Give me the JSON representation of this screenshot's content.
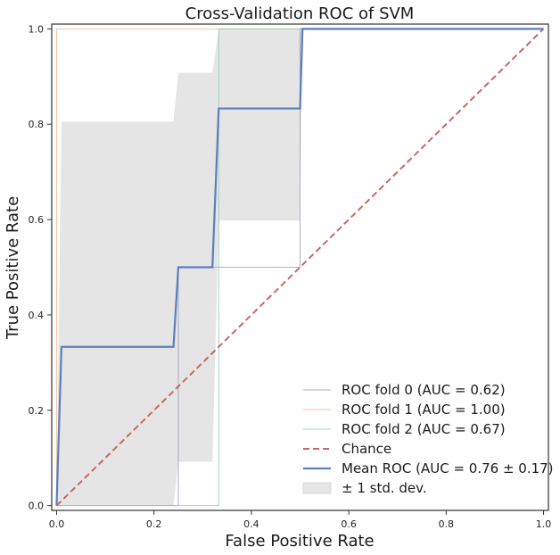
{
  "chart_data": {
    "type": "line",
    "title": "Cross-Validation ROC of SVM",
    "xlabel": "False Positive Rate",
    "ylabel": "True Positive Rate",
    "xlim": [
      -0.01,
      1.01
    ],
    "ylim": [
      -0.01,
      1.01
    ],
    "grid": false,
    "legend_position": "bottom-right",
    "xticks": [
      "0.0",
      "0.2",
      "0.4",
      "0.6",
      "0.8",
      "1.0"
    ],
    "yticks": [
      "0.0",
      "0.2",
      "0.4",
      "0.6",
      "0.8",
      "1.0"
    ],
    "series": [
      {
        "name": "ROC fold 0 (AUC = 0.62)",
        "kind": "fold",
        "color": "#9b9bc9",
        "x": [
          0,
          0.0,
          0.25,
          0.25,
          0.5,
          0.5,
          1.0
        ],
        "y": [
          0,
          0.0,
          0.0,
          0.5,
          0.5,
          1.0,
          1.0
        ]
      },
      {
        "name": "ROC fold 1 (AUC = 1.00)",
        "kind": "fold",
        "color": "#f0b68a",
        "x": [
          0,
          0.0,
          0.0,
          1.0
        ],
        "y": [
          0,
          0.0,
          1.0,
          1.0
        ]
      },
      {
        "name": "ROC fold 2 (AUC = 0.67)",
        "kind": "fold",
        "color": "#8ec9b2",
        "x": [
          0,
          0.0,
          0.333,
          0.333,
          1.0
        ],
        "y": [
          0,
          0.0,
          0.0,
          1.0,
          1.0
        ]
      },
      {
        "name": "Chance",
        "kind": "chance",
        "color": "#cc6666",
        "x": [
          0,
          1
        ],
        "y": [
          0,
          1
        ]
      },
      {
        "name": "Mean ROC (AUC = 0.76 ± 0.17)",
        "kind": "mean",
        "color": "#5b7fbd",
        "x": [
          0.0,
          0.01,
          0.24,
          0.25,
          0.32,
          0.333,
          0.5,
          0.505,
          1.0
        ],
        "y": [
          0.0,
          0.333,
          0.333,
          0.5,
          0.5,
          0.833,
          0.833,
          1.0,
          1.0
        ]
      }
    ],
    "band": {
      "name": "± 1 std. dev.",
      "color": "#bdbdbd",
      "x": [
        0.0,
        0.01,
        0.24,
        0.25,
        0.32,
        0.333,
        0.5,
        0.505,
        1.0
      ],
      "upper": [
        0.0,
        0.805,
        0.805,
        0.908,
        0.908,
        1.0,
        1.0,
        1.0,
        1.0
      ],
      "lower": [
        0.0,
        0.0,
        0.0,
        0.092,
        0.092,
        0.598,
        0.598,
        1.0,
        1.0
      ]
    }
  }
}
